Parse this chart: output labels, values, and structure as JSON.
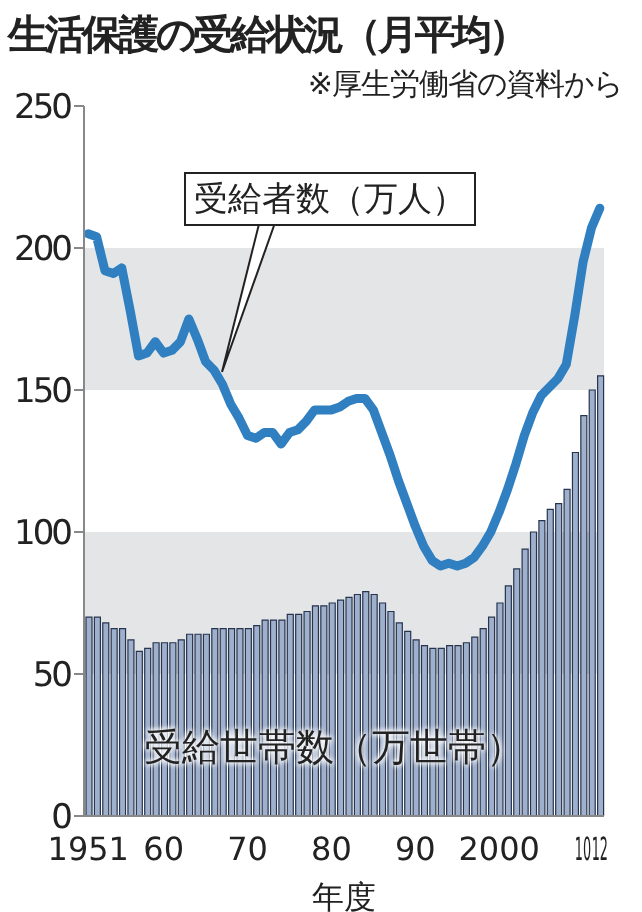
{
  "chart_data": {
    "type": "bar",
    "title": "生活保護の受給状況（月平均）",
    "subtitle": "※厚生労働省の資料から",
    "xlabel": "年度",
    "categories": [
      "1951",
      null,
      null,
      null,
      null,
      null,
      null,
      null,
      null,
      "60",
      null,
      null,
      null,
      null,
      null,
      null,
      null,
      null,
      null,
      "70",
      null,
      null,
      null,
      null,
      null,
      null,
      null,
      null,
      null,
      "80",
      null,
      null,
      null,
      null,
      null,
      null,
      null,
      null,
      null,
      "90",
      null,
      null,
      null,
      null,
      null,
      null,
      null,
      null,
      null,
      "2000",
      null,
      null,
      null,
      null,
      null,
      null,
      null,
      null,
      null,
      "10",
      null,
      "12"
    ],
    "series": [
      {
        "name": "受給世帯数（万世帯）",
        "color": "#9fb0cc",
        "values": [
          70,
          70,
          68,
          66,
          66,
          62,
          58,
          59,
          61,
          61,
          61,
          62,
          64,
          64,
          64,
          66,
          66,
          66,
          66,
          66,
          67,
          69,
          69,
          69,
          71,
          71,
          72,
          74,
          74,
          75,
          76,
          77,
          78,
          79,
          78,
          75,
          72,
          68,
          65,
          62,
          60,
          59,
          59,
          60,
          60,
          61,
          63,
          66,
          70,
          75,
          81,
          87,
          94,
          100,
          104,
          108,
          110,
          115,
          128,
          141,
          150,
          155
        ]
      },
      {
        "name": "受給者数（万人）",
        "type": "line",
        "color": "#2f7fc1",
        "values": [
          205,
          204,
          192,
          191,
          193,
          178,
          162,
          163,
          167,
          163,
          164,
          167,
          175,
          168,
          160,
          157,
          152,
          145,
          140,
          134,
          133,
          135,
          135,
          131,
          135,
          136,
          139,
          143,
          143,
          143,
          144,
          146,
          147,
          147,
          143,
          135,
          127,
          118,
          110,
          102,
          95,
          90,
          88,
          89,
          88,
          89,
          91,
          95,
          100,
          107,
          115,
          124,
          134,
          142,
          148,
          151,
          154,
          159,
          176,
          195,
          207,
          214
        ]
      }
    ],
    "ylim": [
      0,
      250
    ],
    "yticks": [
      0,
      50,
      100,
      150,
      200,
      250
    ],
    "bands": [
      {
        "axis": "y",
        "from": 50,
        "to": 100,
        "color": "#e4e5e7"
      },
      {
        "axis": "y",
        "from": 150,
        "to": 200,
        "color": "#e4e5e7"
      }
    ],
    "grid": false,
    "marker": "none",
    "line_style": "solid"
  }
}
